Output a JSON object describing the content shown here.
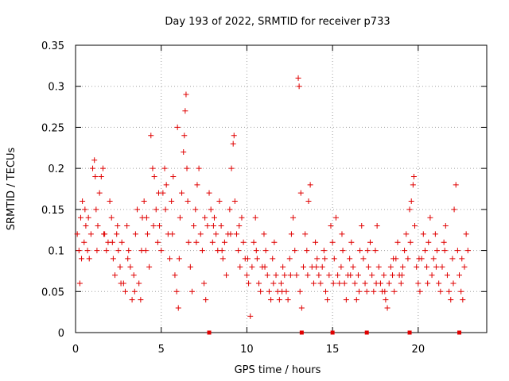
{
  "chart_data": {
    "type": "scatter",
    "title": "Day 193 of 2022, SRMTID for receiver p733",
    "xlabel": "GPS time / hours",
    "ylabel": "SRMTID / TECUs",
    "xlim": [
      0,
      24
    ],
    "ylim": [
      0,
      0.35
    ],
    "x_ticks": [
      0,
      5,
      10,
      15,
      20
    ],
    "x_tick_labels": [
      "0",
      "5",
      "10",
      "15",
      "20"
    ],
    "y_ticks": [
      0,
      0.05,
      0.1,
      0.15,
      0.2,
      0.25,
      0.3,
      0.35
    ],
    "y_tick_labels": [
      "0",
      "0.05",
      "0.1",
      "0.15",
      "0.2",
      "0.25",
      "0.3",
      "0.35"
    ],
    "grid": true,
    "marker": "+",
    "point_color": "#e00000",
    "series": [
      {
        "name": "SRMTID",
        "points": [
          [
            0.1,
            0.12
          ],
          [
            0.2,
            0.1
          ],
          [
            0.25,
            0.06
          ],
          [
            0.3,
            0.14
          ],
          [
            0.4,
            0.16
          ],
          [
            0.5,
            0.11
          ],
          [
            0.6,
            0.13
          ],
          [
            0.7,
            0.1
          ],
          [
            0.8,
            0.09
          ],
          [
            0.9,
            0.12
          ],
          [
            1.0,
            0.2
          ],
          [
            1.1,
            0.21
          ],
          [
            1.15,
            0.19
          ],
          [
            1.2,
            0.15
          ],
          [
            1.3,
            0.13
          ],
          [
            1.4,
            0.17
          ],
          [
            1.5,
            0.19
          ],
          [
            1.6,
            0.2
          ],
          [
            1.7,
            0.12
          ],
          [
            1.8,
            0.1
          ],
          [
            1.9,
            0.11
          ],
          [
            2.0,
            0.16
          ],
          [
            2.1,
            0.14
          ],
          [
            2.2,
            0.09
          ],
          [
            2.3,
            0.07
          ],
          [
            2.4,
            0.12
          ],
          [
            2.5,
            0.1
          ],
          [
            2.6,
            0.08
          ],
          [
            2.7,
            0.11
          ],
          [
            2.8,
            0.06
          ],
          [
            2.9,
            0.05
          ],
          [
            3.0,
            0.13
          ],
          [
            3.1,
            0.1
          ],
          [
            3.2,
            0.08
          ],
          [
            3.3,
            0.04
          ],
          [
            3.4,
            0.07
          ],
          [
            3.5,
            0.12
          ],
          [
            3.6,
            0.15
          ],
          [
            3.7,
            0.06
          ],
          [
            3.8,
            0.04
          ],
          [
            3.9,
            0.14
          ],
          [
            4.0,
            0.16
          ],
          [
            4.1,
            0.1
          ],
          [
            4.2,
            0.12
          ],
          [
            4.3,
            0.08
          ],
          [
            4.4,
            0.24
          ],
          [
            4.5,
            0.2
          ],
          [
            4.6,
            0.19
          ],
          [
            4.7,
            0.15
          ],
          [
            4.8,
            0.11
          ],
          [
            4.9,
            0.13
          ],
          [
            5.0,
            0.1
          ],
          [
            5.1,
            0.17
          ],
          [
            5.2,
            0.2
          ],
          [
            5.3,
            0.18
          ],
          [
            5.4,
            0.12
          ],
          [
            5.5,
            0.09
          ],
          [
            5.6,
            0.16
          ],
          [
            5.7,
            0.19
          ],
          [
            5.8,
            0.07
          ],
          [
            5.9,
            0.05
          ],
          [
            5.95,
            0.25
          ],
          [
            6.0,
            0.03
          ],
          [
            6.1,
            0.14
          ],
          [
            6.2,
            0.17
          ],
          [
            6.3,
            0.22
          ],
          [
            6.35,
            0.24
          ],
          [
            6.4,
            0.27
          ],
          [
            6.45,
            0.29
          ],
          [
            6.5,
            0.2
          ],
          [
            6.6,
            0.11
          ],
          [
            6.7,
            0.08
          ],
          [
            6.8,
            0.05
          ],
          [
            6.9,
            0.13
          ],
          [
            7.0,
            0.15
          ],
          [
            7.1,
            0.18
          ],
          [
            7.2,
            0.2
          ],
          [
            7.3,
            0.12
          ],
          [
            7.4,
            0.1
          ],
          [
            7.5,
            0.06
          ],
          [
            7.6,
            0.04
          ],
          [
            7.7,
            0.13
          ],
          [
            7.8,
            0.17
          ],
          [
            7.9,
            0.15
          ],
          [
            8.0,
            0.11
          ],
          [
            8.1,
            0.14
          ],
          [
            8.2,
            0.12
          ],
          [
            8.3,
            0.1
          ],
          [
            8.4,
            0.16
          ],
          [
            8.5,
            0.13
          ],
          [
            8.6,
            0.09
          ],
          [
            8.7,
            0.11
          ],
          [
            8.8,
            0.07
          ],
          [
            8.9,
            0.12
          ],
          [
            9.0,
            0.15
          ],
          [
            9.1,
            0.2
          ],
          [
            9.2,
            0.23
          ],
          [
            9.25,
            0.24
          ],
          [
            9.3,
            0.16
          ],
          [
            9.4,
            0.12
          ],
          [
            9.5,
            0.1
          ],
          [
            9.6,
            0.08
          ],
          [
            9.7,
            0.14
          ],
          [
            9.8,
            0.11
          ],
          [
            9.9,
            0.09
          ],
          [
            10.0,
            0.07
          ],
          [
            10.1,
            0.06
          ],
          [
            10.2,
            0.02
          ],
          [
            10.3,
            0.08
          ],
          [
            10.4,
            0.11
          ],
          [
            10.5,
            0.14
          ],
          [
            10.6,
            0.09
          ],
          [
            10.7,
            0.06
          ],
          [
            10.8,
            0.05
          ],
          [
            10.9,
            0.08
          ],
          [
            11.0,
            0.12
          ],
          [
            11.1,
            0.1
          ],
          [
            11.2,
            0.07
          ],
          [
            11.3,
            0.05
          ],
          [
            11.4,
            0.04
          ],
          [
            11.5,
            0.09
          ],
          [
            11.6,
            0.11
          ],
          [
            11.7,
            0.07
          ],
          [
            11.8,
            0.05
          ],
          [
            11.9,
            0.04
          ],
          [
            12.0,
            0.06
          ],
          [
            12.1,
            0.08
          ],
          [
            12.2,
            0.07
          ],
          [
            12.3,
            0.05
          ],
          [
            12.4,
            0.04
          ],
          [
            12.5,
            0.09
          ],
          [
            12.6,
            0.12
          ],
          [
            12.7,
            0.14
          ],
          [
            12.8,
            0.1
          ],
          [
            12.9,
            0.07
          ],
          [
            13.0,
            0.31
          ],
          [
            13.05,
            0.3
          ],
          [
            13.1,
            0.05
          ],
          [
            13.2,
            0.03
          ],
          [
            13.3,
            0.08
          ],
          [
            13.4,
            0.12
          ],
          [
            13.5,
            0.1
          ],
          [
            13.6,
            0.16
          ],
          [
            13.7,
            0.18
          ],
          [
            13.8,
            0.08
          ],
          [
            13.9,
            0.06
          ],
          [
            14.0,
            0.11
          ],
          [
            14.1,
            0.09
          ],
          [
            14.2,
            0.07
          ],
          [
            14.3,
            0.06
          ],
          [
            14.4,
            0.08
          ],
          [
            14.5,
            0.1
          ],
          [
            14.6,
            0.05
          ],
          [
            14.7,
            0.04
          ],
          [
            14.8,
            0.07
          ],
          [
            14.9,
            0.13
          ],
          [
            15.0,
            0.11
          ],
          [
            15.1,
            0.09
          ],
          [
            15.2,
            0.14
          ],
          [
            15.3,
            0.07
          ],
          [
            15.4,
            0.06
          ],
          [
            15.5,
            0.08
          ],
          [
            15.6,
            0.1
          ],
          [
            15.7,
            0.06
          ],
          [
            15.8,
            0.04
          ],
          [
            15.9,
            0.07
          ],
          [
            16.0,
            0.09
          ],
          [
            16.1,
            0.11
          ],
          [
            16.2,
            0.08
          ],
          [
            16.3,
            0.06
          ],
          [
            16.4,
            0.04
          ],
          [
            16.5,
            0.07
          ],
          [
            16.6,
            0.1
          ],
          [
            16.7,
            0.13
          ],
          [
            16.8,
            0.09
          ],
          [
            16.9,
            0.06
          ],
          [
            17.0,
            0.05
          ],
          [
            17.1,
            0.08
          ],
          [
            17.2,
            0.11
          ],
          [
            17.3,
            0.07
          ],
          [
            17.4,
            0.05
          ],
          [
            17.5,
            0.1
          ],
          [
            17.6,
            0.13
          ],
          [
            17.7,
            0.08
          ],
          [
            17.8,
            0.06
          ],
          [
            17.9,
            0.05
          ],
          [
            18.0,
            0.07
          ],
          [
            18.1,
            0.04
          ],
          [
            18.2,
            0.03
          ],
          [
            18.3,
            0.06
          ],
          [
            18.4,
            0.08
          ],
          [
            18.5,
            0.07
          ],
          [
            18.6,
            0.05
          ],
          [
            18.7,
            0.09
          ],
          [
            18.8,
            0.11
          ],
          [
            18.9,
            0.07
          ],
          [
            19.0,
            0.06
          ],
          [
            19.1,
            0.08
          ],
          [
            19.2,
            0.1
          ],
          [
            19.3,
            0.12
          ],
          [
            19.4,
            0.09
          ],
          [
            19.5,
            0.15
          ],
          [
            19.6,
            0.16
          ],
          [
            19.7,
            0.18
          ],
          [
            19.75,
            0.19
          ],
          [
            19.8,
            0.13
          ],
          [
            19.9,
            0.08
          ],
          [
            20.0,
            0.06
          ],
          [
            20.1,
            0.05
          ],
          [
            20.2,
            0.09
          ],
          [
            20.3,
            0.12
          ],
          [
            20.4,
            0.1
          ],
          [
            20.5,
            0.08
          ],
          [
            20.6,
            0.11
          ],
          [
            20.7,
            0.14
          ],
          [
            20.8,
            0.07
          ],
          [
            20.9,
            0.09
          ],
          [
            21.0,
            0.12
          ],
          [
            21.1,
            0.1
          ],
          [
            21.2,
            0.06
          ],
          [
            21.3,
            0.05
          ],
          [
            21.4,
            0.08
          ],
          [
            21.5,
            0.11
          ],
          [
            21.6,
            0.13
          ],
          [
            21.7,
            0.07
          ],
          [
            21.8,
            0.05
          ],
          [
            21.9,
            0.04
          ],
          [
            22.0,
            0.09
          ],
          [
            22.1,
            0.15
          ],
          [
            22.2,
            0.18
          ],
          [
            22.3,
            0.1
          ],
          [
            22.4,
            0.07
          ],
          [
            22.5,
            0.05
          ],
          [
            22.6,
            0.04
          ],
          [
            22.7,
            0.08
          ],
          [
            22.8,
            0.12
          ],
          [
            22.9,
            0.1
          ],
          [
            0.35,
            0.09
          ],
          [
            0.55,
            0.15
          ],
          [
            0.75,
            0.14
          ],
          [
            1.25,
            0.1
          ],
          [
            1.65,
            0.12
          ],
          [
            2.15,
            0.11
          ],
          [
            2.45,
            0.13
          ],
          [
            2.65,
            0.06
          ],
          [
            3.05,
            0.09
          ],
          [
            3.45,
            0.05
          ],
          [
            3.85,
            0.1
          ],
          [
            4.15,
            0.14
          ],
          [
            4.55,
            0.13
          ],
          [
            4.85,
            0.17
          ],
          [
            5.25,
            0.15
          ],
          [
            5.65,
            0.12
          ],
          [
            6.05,
            0.09
          ],
          [
            6.55,
            0.16
          ],
          [
            7.05,
            0.11
          ],
          [
            7.55,
            0.14
          ],
          [
            8.05,
            0.13
          ],
          [
            8.55,
            0.1
          ],
          [
            9.05,
            0.12
          ],
          [
            9.55,
            0.13
          ],
          [
            10.05,
            0.09
          ],
          [
            10.55,
            0.1
          ],
          [
            11.05,
            0.08
          ],
          [
            11.55,
            0.06
          ],
          [
            12.05,
            0.05
          ],
          [
            12.55,
            0.07
          ],
          [
            13.15,
            0.17
          ],
          [
            13.55,
            0.07
          ],
          [
            14.05,
            0.08
          ],
          [
            14.55,
            0.09
          ],
          [
            15.05,
            0.06
          ],
          [
            15.55,
            0.12
          ],
          [
            16.05,
            0.07
          ],
          [
            16.55,
            0.05
          ],
          [
            17.05,
            0.1
          ],
          [
            17.55,
            0.06
          ],
          [
            18.05,
            0.05
          ],
          [
            18.55,
            0.09
          ],
          [
            19.05,
            0.07
          ],
          [
            19.55,
            0.11
          ],
          [
            20.05,
            0.09
          ],
          [
            20.55,
            0.06
          ],
          [
            21.05,
            0.08
          ],
          [
            21.55,
            0.1
          ],
          [
            22.05,
            0.06
          ],
          [
            22.55,
            0.09
          ]
        ]
      }
    ],
    "zero_markers_x": [
      7.8,
      13.2,
      15.0,
      17.0,
      19.5,
      22.4
    ]
  }
}
